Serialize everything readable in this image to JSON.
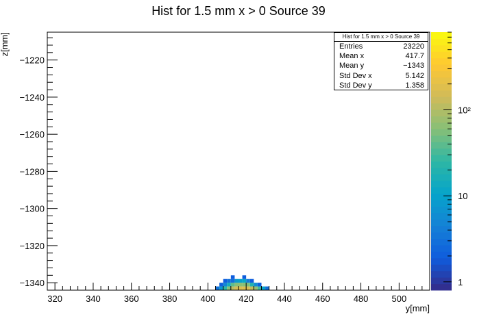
{
  "chart_data": {
    "type": "heatmap",
    "title": "Hist for 1.5 mm x > 0 Source 39",
    "xlabel": "y[mm]",
    "ylabel": "z[mm]",
    "xlim": [
      316,
      516
    ],
    "ylim": [
      -1344,
      -1205
    ],
    "x_ticks": [
      320,
      340,
      360,
      380,
      400,
      420,
      440,
      460,
      480,
      500
    ],
    "y_ticks": [
      -1220,
      -1240,
      -1260,
      -1280,
      -1300,
      -1320,
      -1340
    ],
    "color_scale": "log",
    "color_range": [
      0.8,
      800
    ],
    "colorbar_ticks": [
      {
        "value": 1,
        "label": "1"
      },
      {
        "value": 10,
        "label": "10"
      },
      {
        "value": 100,
        "label": "10²"
      }
    ],
    "bin_width": 2,
    "bin_height": 2,
    "cells": [
      {
        "x": 404,
        "y": -1343,
        "v": 3
      },
      {
        "x": 406,
        "y": -1343,
        "v": 8
      },
      {
        "x": 408,
        "y": -1343,
        "v": 25
      },
      {
        "x": 410,
        "y": -1343,
        "v": 60
      },
      {
        "x": 412,
        "y": -1343,
        "v": 110
      },
      {
        "x": 414,
        "y": -1343,
        "v": 150
      },
      {
        "x": 416,
        "y": -1343,
        "v": 170
      },
      {
        "x": 418,
        "y": -1343,
        "v": 175
      },
      {
        "x": 420,
        "y": -1343,
        "v": 160
      },
      {
        "x": 422,
        "y": -1343,
        "v": 120
      },
      {
        "x": 424,
        "y": -1343,
        "v": 70
      },
      {
        "x": 426,
        "y": -1343,
        "v": 30
      },
      {
        "x": 428,
        "y": -1343,
        "v": 10
      },
      {
        "x": 430,
        "y": -1343,
        "v": 3
      },
      {
        "x": 406,
        "y": -1341,
        "v": 2
      },
      {
        "x": 408,
        "y": -1341,
        "v": 5
      },
      {
        "x": 410,
        "y": -1341,
        "v": 15
      },
      {
        "x": 412,
        "y": -1341,
        "v": 40
      },
      {
        "x": 414,
        "y": -1341,
        "v": 60
      },
      {
        "x": 416,
        "y": -1341,
        "v": 65
      },
      {
        "x": 418,
        "y": -1341,
        "v": 60
      },
      {
        "x": 420,
        "y": -1341,
        "v": 55
      },
      {
        "x": 422,
        "y": -1341,
        "v": 20
      },
      {
        "x": 424,
        "y": -1341,
        "v": 6
      },
      {
        "x": 426,
        "y": -1341,
        "v": 2
      },
      {
        "x": 408,
        "y": -1339,
        "v": 2
      },
      {
        "x": 410,
        "y": -1339,
        "v": 3
      },
      {
        "x": 412,
        "y": -1339,
        "v": 3
      },
      {
        "x": 414,
        "y": -1339,
        "v": 8
      },
      {
        "x": 416,
        "y": -1339,
        "v": 10
      },
      {
        "x": 418,
        "y": -1339,
        "v": 12
      },
      {
        "x": 420,
        "y": -1339,
        "v": 4
      },
      {
        "x": 422,
        "y": -1339,
        "v": 2
      },
      {
        "x": 412,
        "y": -1337,
        "v": 2
      },
      {
        "x": 418,
        "y": -1337,
        "v": 2
      }
    ]
  },
  "stats": {
    "title": "Hist for 1.5 mm x > 0 Source 39",
    "rows": [
      {
        "label": "Entries",
        "value": "23220"
      },
      {
        "label": "Mean x",
        "value": "417.7"
      },
      {
        "label": "Mean y",
        "value": "−1343"
      },
      {
        "label": "Std Dev x",
        "value": "5.142"
      },
      {
        "label": "Std Dev y",
        "value": "1.358"
      }
    ]
  },
  "palette": [
    "#352a87",
    "#0f5cdd",
    "#1481d6",
    "#06a4ca",
    "#2eb7a4",
    "#87bf77",
    "#d1bb59",
    "#fec832",
    "#f9fb0e"
  ]
}
